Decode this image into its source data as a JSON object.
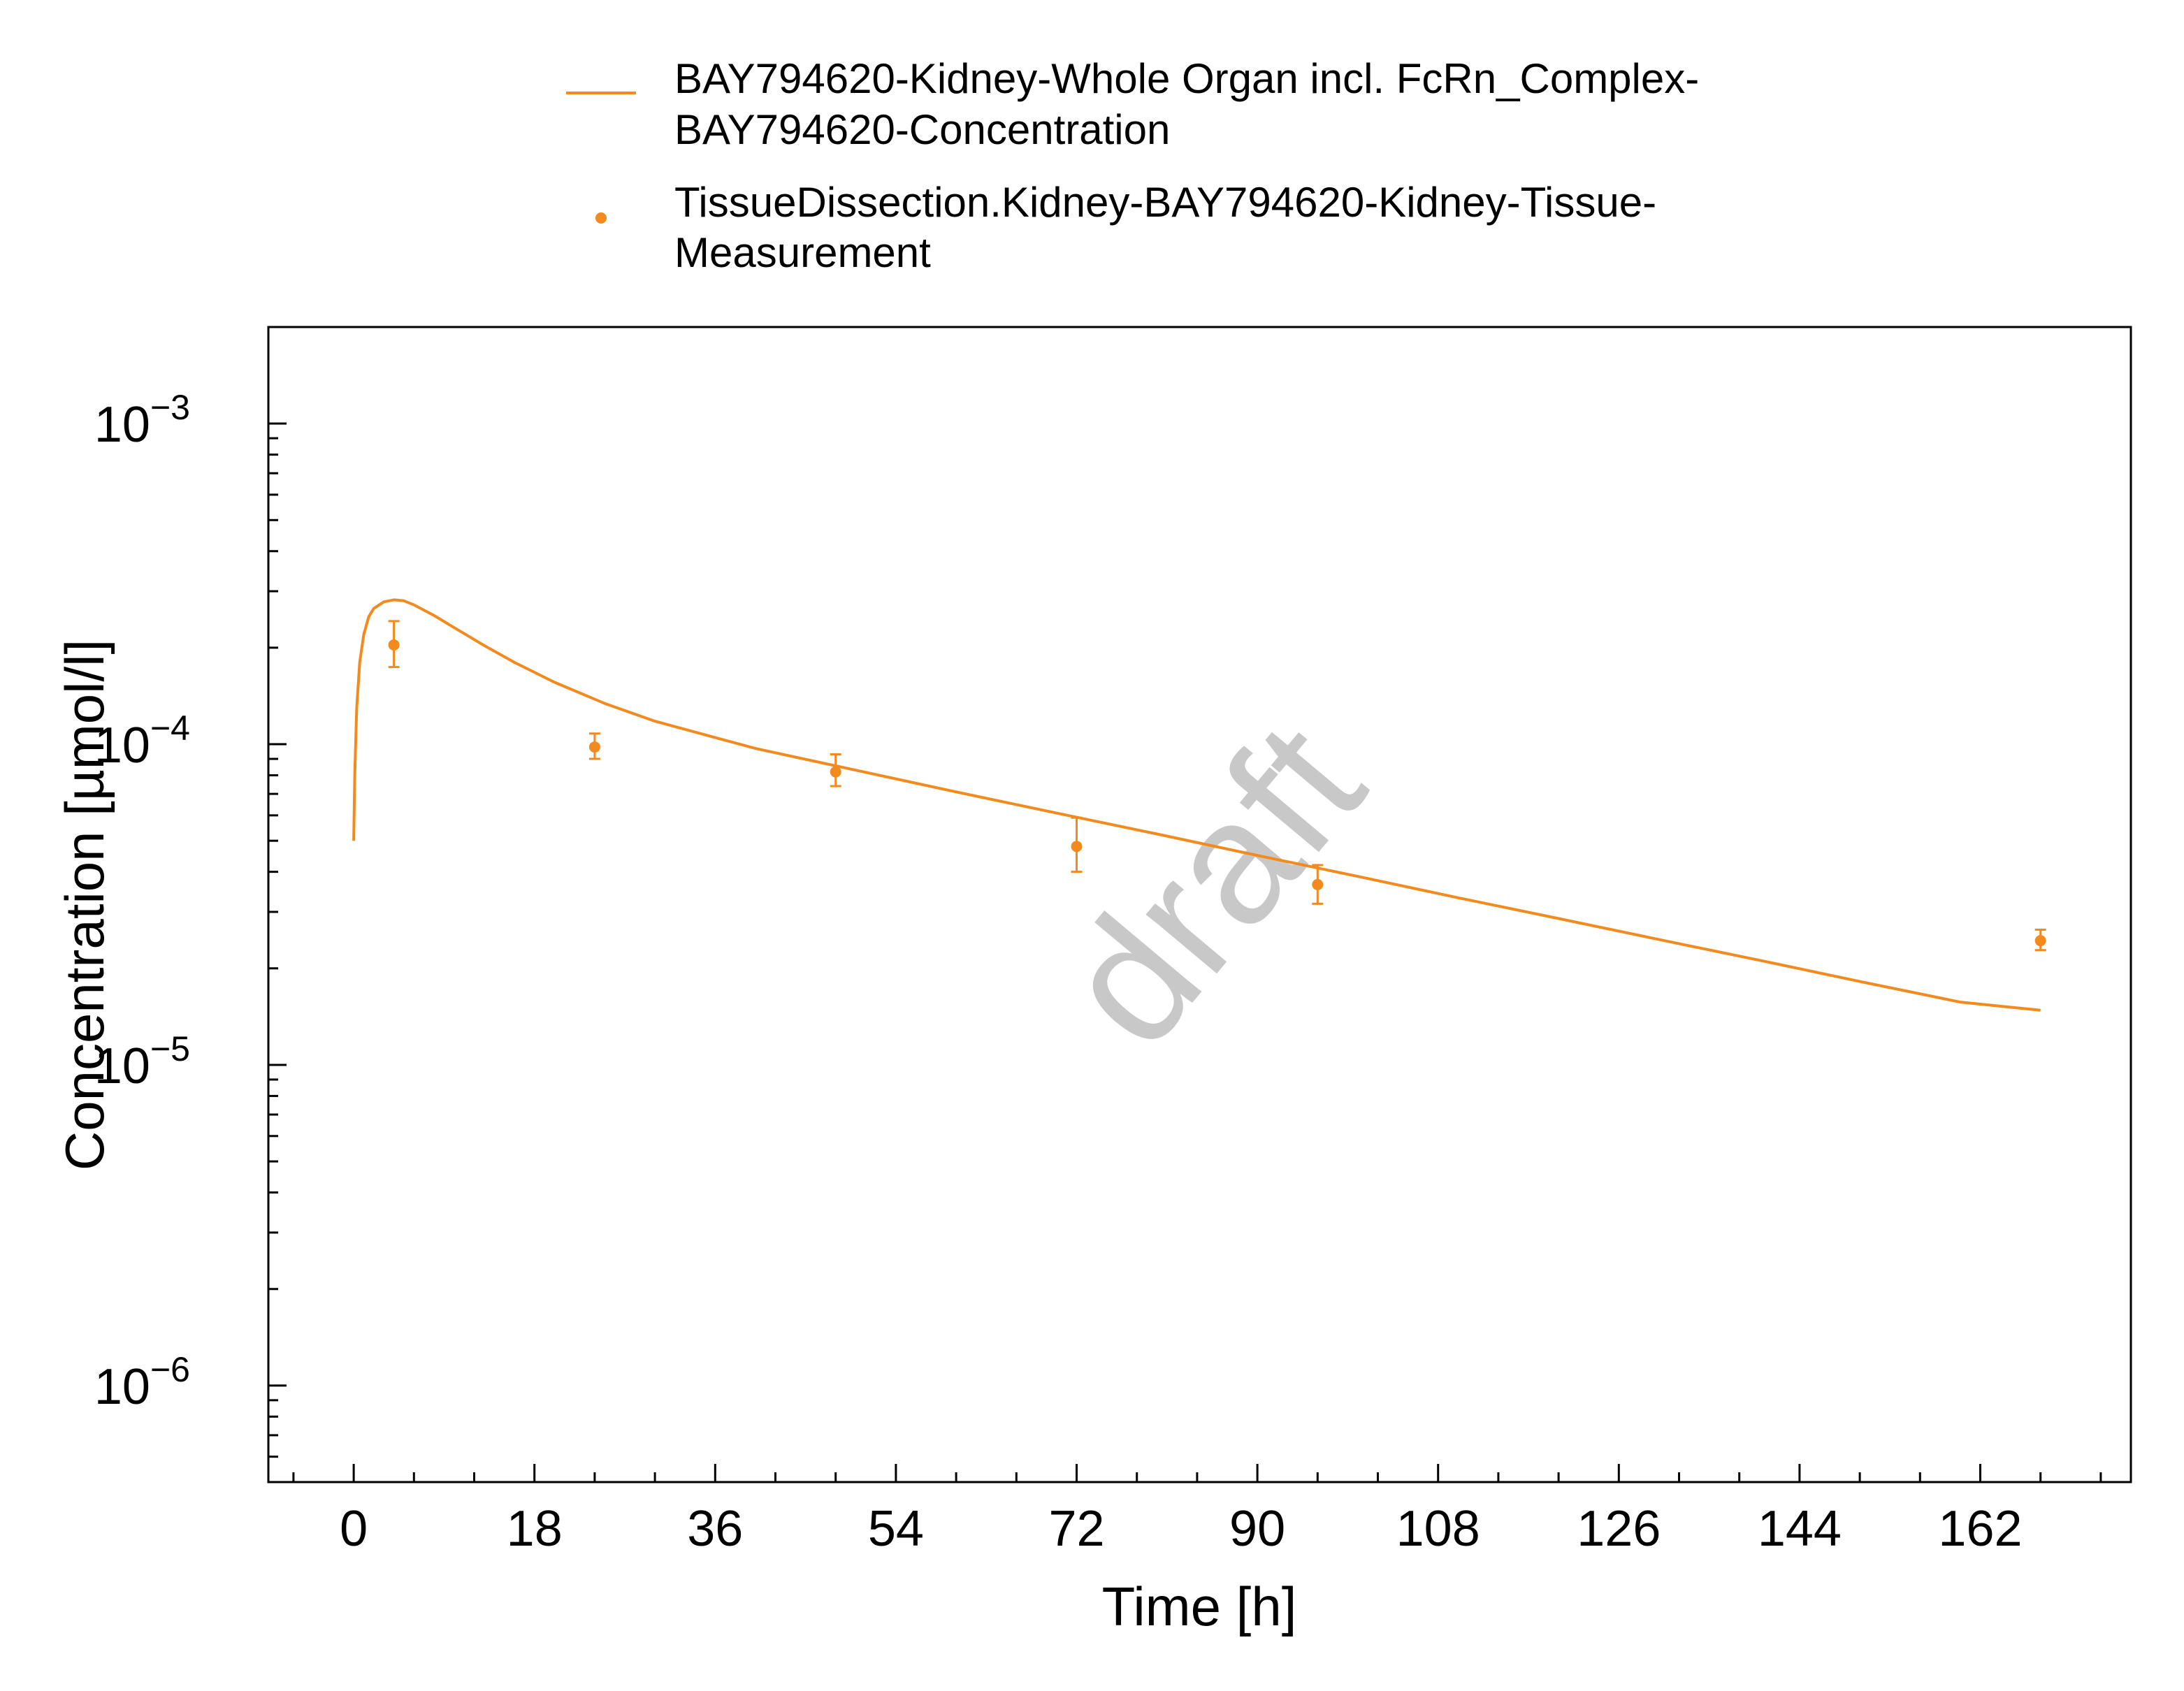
{
  "chart_data": {
    "type": "line",
    "xlabel": "Time [h]",
    "ylabel": "Concentration [µmol/l]",
    "xlim": [
      -8.5,
      177
    ],
    "ylim": [
      5e-07,
      0.002
    ],
    "y_scale": "log",
    "grid": false,
    "legend_position": "top",
    "x_ticks": [
      "0",
      "18",
      "36",
      "54",
      "72",
      "90",
      "108",
      "126",
      "144",
      "162"
    ],
    "y_ticks": [
      {
        "value": 1e-06,
        "base": "10",
        "exp": "−6"
      },
      {
        "value": 1e-05,
        "base": "10",
        "exp": "−5"
      },
      {
        "value": 0.0001,
        "base": "10",
        "exp": "−4"
      },
      {
        "value": 0.001,
        "base": "10",
        "exp": "−3"
      }
    ],
    "series": [
      {
        "name": "BAY794620-Kidney-Whole Organ incl. FcRn_Complex-BAY794620-Concentration",
        "name_lines": [
          "BAY794620-Kidney-Whole Organ incl. FcRn_Complex-",
          "BAY794620-Concentration"
        ],
        "kind": "line",
        "color": "#F28A1E",
        "x": [
          0,
          0.1,
          0.3,
          0.6,
          1.0,
          1.5,
          2.0,
          3.0,
          4.0,
          5.0,
          6.0,
          8.0,
          10.0,
          13.0,
          16.0,
          20.0,
          25.0,
          30.0,
          40.0,
          50.0,
          60.0,
          70.0,
          80.0,
          90.0,
          100.0,
          110.0,
          120.0,
          130.0,
          140.0,
          150.0,
          160.0,
          168.0
        ],
        "y": [
          5e-05,
          8e-05,
          0.00013,
          0.00018,
          0.00022,
          0.00025,
          0.000265,
          0.000278,
          0.000282,
          0.00028,
          0.000272,
          0.000252,
          0.000231,
          0.000203,
          0.00018,
          0.000156,
          0.000134,
          0.000118,
          9.7e-05,
          8.3e-05,
          7.1e-05,
          6.1e-05,
          5.25e-05,
          4.5e-05,
          3.87e-05,
          3.32e-05,
          2.86e-05,
          2.46e-05,
          2.12e-05,
          1.82e-05,
          1.57e-05,
          1.48e-05
        ]
      },
      {
        "name": "TissueDissection.Kidney-BAY794620-Kidney-Tissue-Measurement",
        "name_lines": [
          "TissueDissection.Kidney-BAY794620-Kidney-Tissue-",
          "Measurement"
        ],
        "kind": "scatter",
        "color": "#F28A1E",
        "points": [
          {
            "x": 4,
            "y": 0.000204,
            "low": 0.000174,
            "high": 0.000242
          },
          {
            "x": 24,
            "y": 9.8e-05,
            "low": 9e-05,
            "high": 0.000108
          },
          {
            "x": 48,
            "y": 8.2e-05,
            "low": 7.4e-05,
            "high": 9.3e-05
          },
          {
            "x": 72,
            "y": 4.8e-05,
            "low": 4e-05,
            "high": 5.9e-05
          },
          {
            "x": 96,
            "y": 3.65e-05,
            "low": 3.18e-05,
            "high": 4.2e-05
          },
          {
            "x": 168,
            "y": 2.44e-05,
            "low": 2.28e-05,
            "high": 2.64e-05
          }
        ]
      }
    ],
    "watermark": "draft"
  }
}
